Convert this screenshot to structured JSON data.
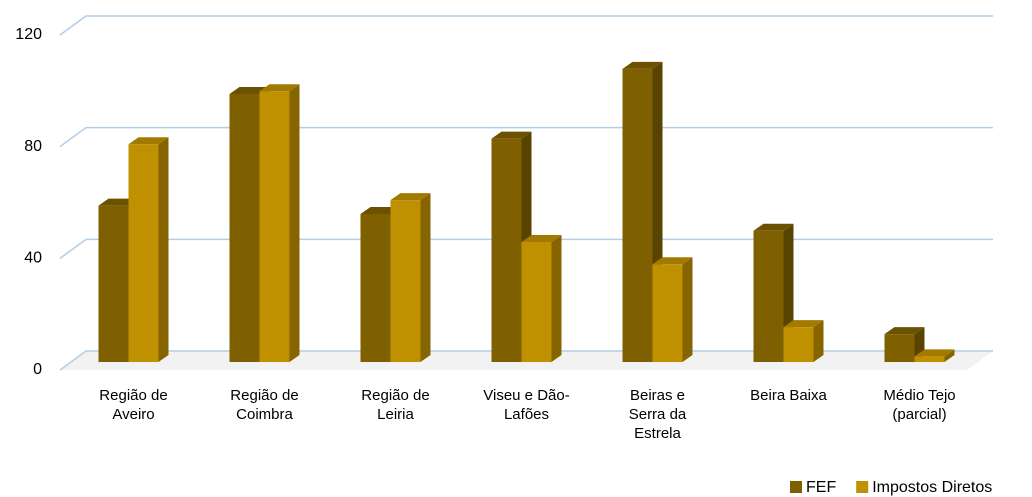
{
  "chart_data": {
    "type": "bar3d",
    "categories": [
      "Região de Aveiro",
      "Região de Coimbra",
      "Região de Leiria",
      "Viseu e Dão-Lafões",
      "Beiras e Serra da Estrela",
      "Beira Baixa",
      "Médio Tejo (parcial)"
    ],
    "series": [
      {
        "name": "FEF",
        "color": "#7f6000",
        "values": [
          56,
          96,
          53,
          80,
          105,
          47,
          10
        ]
      },
      {
        "name": "Impostos Diretos",
        "color": "#bf9000",
        "values": [
          78,
          97,
          58,
          43,
          35,
          12.5,
          2
        ]
      }
    ],
    "ylim": [
      0,
      120
    ],
    "yticks": [
      0,
      40,
      80,
      120
    ],
    "grid": true,
    "legend": "bottom-right"
  }
}
